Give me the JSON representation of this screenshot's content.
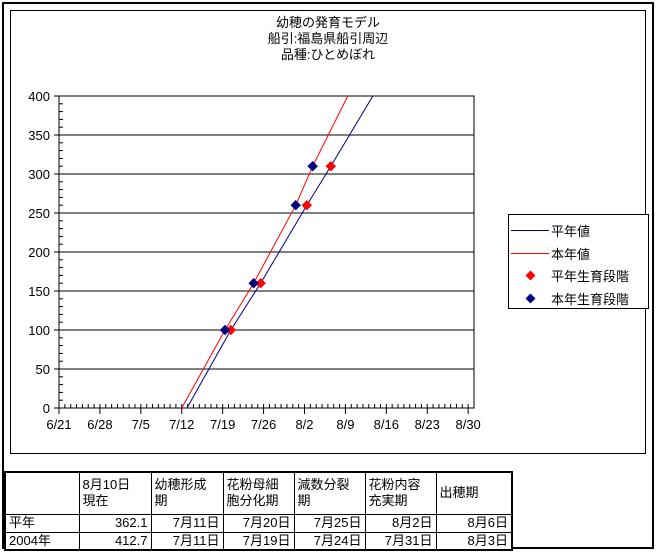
{
  "title": {
    "line1": "幼穂の発育モデル",
    "line2": "船引:福島県船引周辺",
    "line3": "品種:ひとめぼれ"
  },
  "colors": {
    "normal_year_line": "#000080",
    "this_year_line": "#ff0000",
    "normal_year_stage_marker": "#ff0000",
    "this_year_stage_marker": "#000080",
    "axis": "#000000",
    "background": "#ffffff"
  },
  "chart_data": {
    "type": "line",
    "title": "幼穂の発育モデル 船引:福島県船引周辺 品種:ひとめぼれ",
    "xlabel": "",
    "ylabel": "",
    "x_axis": {
      "kind": "date",
      "start_label": "6/21",
      "tick_labels": [
        "6/21",
        "6/28",
        "7/5",
        "7/12",
        "7/19",
        "7/26",
        "8/2",
        "8/9",
        "8/16",
        "8/23",
        "8/30"
      ],
      "major_tick_interval_days": 7,
      "minor_tick_interval_days": 1,
      "range_days": [
        0,
        71
      ]
    },
    "y_axis": {
      "min": 0,
      "max": 400,
      "major_tick": 50,
      "minor_tick": 10,
      "tick_labels": [
        "0",
        "50",
        "100",
        "150",
        "200",
        "250",
        "300",
        "350",
        "400"
      ],
      "gridlines": true
    },
    "legend_position": "right",
    "series": [
      {
        "name": "平年値",
        "kind": "line",
        "color": "#000080",
        "points_day_value": [
          [
            21.9,
            0
          ],
          [
            29.4,
            100
          ],
          [
            34.5,
            160
          ],
          [
            42.4,
            260
          ],
          [
            46.5,
            310
          ],
          [
            53.7,
            400
          ]
        ]
      },
      {
        "name": "本年値",
        "kind": "line",
        "color": "#ff0000",
        "points_day_value": [
          [
            21.0,
            0
          ],
          [
            28.4,
            100
          ],
          [
            33.3,
            160
          ],
          [
            40.5,
            260
          ],
          [
            43.4,
            310
          ],
          [
            49.4,
            400
          ]
        ]
      },
      {
        "name": "平年生育段階",
        "kind": "scatter",
        "marker": "diamond",
        "color": "#ff0000",
        "points_day_value": [
          [
            29.4,
            100
          ],
          [
            34.5,
            160
          ],
          [
            42.4,
            260
          ],
          [
            46.5,
            310
          ]
        ]
      },
      {
        "name": "本年生育段階",
        "kind": "scatter",
        "marker": "diamond",
        "color": "#000080",
        "points_day_value": [
          [
            28.4,
            100
          ],
          [
            33.3,
            160
          ],
          [
            40.5,
            260
          ],
          [
            43.4,
            310
          ]
        ]
      }
    ]
  },
  "legend": {
    "items": [
      {
        "label": "平年値",
        "swatch": "line",
        "color": "#000080"
      },
      {
        "label": "本年値",
        "swatch": "line",
        "color": "#ff0000"
      },
      {
        "label": "平年生育段階",
        "swatch": "diamond",
        "color": "#ff0000"
      },
      {
        "label": "本年生育段階",
        "swatch": "diamond",
        "color": "#000080"
      }
    ]
  },
  "table": {
    "column_headers": [
      {
        "line1": "",
        "line2": ""
      },
      {
        "line1": "8月10日",
        "line2": "現在"
      },
      {
        "line1": "幼穂形成",
        "line2": "期"
      },
      {
        "line1": "花粉母細",
        "line2": "胞分化期"
      },
      {
        "line1": "減数分裂",
        "line2": "期"
      },
      {
        "line1": "花粉内容",
        "line2": "充実期"
      },
      {
        "line1": "出穂期",
        "line2": ""
      }
    ],
    "rows": [
      {
        "label": "平年",
        "cells": [
          "362.1",
          "7月11日",
          "7月20日",
          "7月25日",
          "8月2日",
          "8月6日"
        ]
      },
      {
        "label": "2004年",
        "cells": [
          "412.7",
          "7月11日",
          "7月19日",
          "7月24日",
          "7月31日",
          "8月3日"
        ]
      }
    ]
  }
}
